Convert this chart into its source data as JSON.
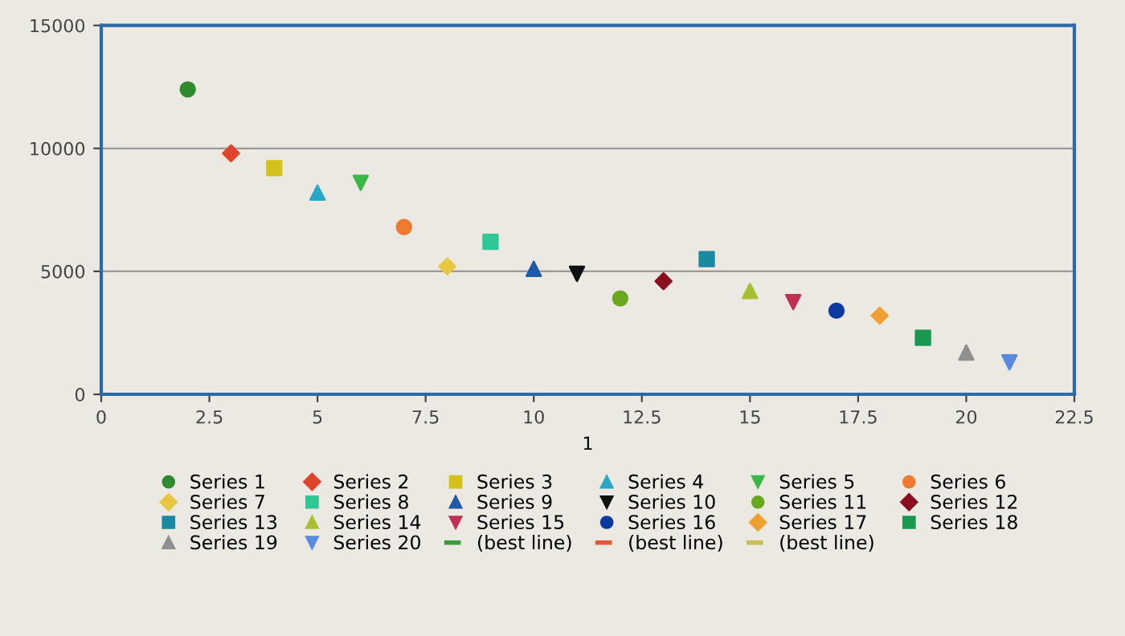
{
  "chart_data": {
    "type": "scatter",
    "xlabel": "1",
    "xlim": [
      0,
      22.5
    ],
    "xticks": [
      0,
      2.5,
      5,
      7.5,
      10,
      12.5,
      15,
      17.5,
      20,
      22.5
    ],
    "ylim": [
      0,
      15000
    ],
    "yticks": [
      0,
      5000,
      10000,
      15000
    ],
    "grid": "y",
    "legend": "bottom",
    "series": [
      {
        "name": "Series 1",
        "color": "#2e8b2e",
        "marker": "circle",
        "x": [
          2
        ],
        "values": [
          12400
        ]
      },
      {
        "name": "Series 2",
        "color": "#e0442a",
        "marker": "diamond",
        "x": [
          3
        ],
        "values": [
          9800
        ]
      },
      {
        "name": "Series 3",
        "color": "#d4c21a",
        "marker": "square",
        "x": [
          4
        ],
        "values": [
          9200
        ]
      },
      {
        "name": "Series 4",
        "color": "#2aa8c8",
        "marker": "triangle",
        "x": [
          5
        ],
        "values": [
          8200
        ]
      },
      {
        "name": "Series 5",
        "color": "#3cb84a",
        "marker": "triangle_down",
        "x": [
          6
        ],
        "values": [
          8600
        ]
      },
      {
        "name": "Series 6",
        "color": "#f07a30",
        "marker": "circle",
        "x": [
          7
        ],
        "values": [
          6800
        ]
      },
      {
        "name": "Series 7",
        "color": "#e8c840",
        "marker": "diamond",
        "x": [
          8
        ],
        "values": [
          5200
        ]
      },
      {
        "name": "Series 8",
        "color": "#2ec896",
        "marker": "square",
        "x": [
          9
        ],
        "values": [
          6200
        ]
      },
      {
        "name": "Series 9",
        "color": "#1e5aa8",
        "marker": "triangle",
        "x": [
          10
        ],
        "values": [
          5100
        ]
      },
      {
        "name": "Series 10",
        "color": "#111111",
        "marker": "triangle_down",
        "x": [
          11
        ],
        "values": [
          4900
        ]
      },
      {
        "name": "Series 11",
        "color": "#6aa820",
        "marker": "circle",
        "x": [
          12
        ],
        "values": [
          3900
        ]
      },
      {
        "name": "Series 12",
        "color": "#8a1020",
        "marker": "diamond",
        "x": [
          13
        ],
        "values": [
          4600
        ]
      },
      {
        "name": "Series 13",
        "color": "#1a8aa0",
        "marker": "square",
        "x": [
          14
        ],
        "values": [
          5500
        ]
      },
      {
        "name": "Series 14",
        "color": "#a8c030",
        "marker": "triangle",
        "x": [
          15
        ],
        "values": [
          4200
        ]
      },
      {
        "name": "Series 15",
        "color": "#c03050",
        "marker": "triangle_down",
        "x": [
          16
        ],
        "values": [
          3750
        ]
      },
      {
        "name": "Series 16",
        "color": "#0a3aa0",
        "marker": "circle",
        "x": [
          17
        ],
        "values": [
          3400
        ]
      },
      {
        "name": "Series 17",
        "color": "#f0a030",
        "marker": "diamond",
        "x": [
          18
        ],
        "values": [
          3200
        ]
      },
      {
        "name": "Series 18",
        "color": "#1a9850",
        "marker": "square",
        "x": [
          19
        ],
        "values": [
          2300
        ]
      },
      {
        "name": "Series 19",
        "color": "#909090",
        "marker": "triangle",
        "x": [
          20
        ],
        "values": [
          1700
        ]
      },
      {
        "name": "Series 20",
        "color": "#5a8ae0",
        "marker": "triangle_down",
        "x": [
          21
        ],
        "values": [
          1300
        ]
      },
      {
        "name": "(best line)",
        "type": "line",
        "color": "#3c9a3c",
        "line_style": "dashed",
        "marker": "none"
      },
      {
        "name": "(best line)",
        "type": "line",
        "color": "#e05a3a",
        "line_style": "dashed",
        "marker": "none"
      },
      {
        "name": "(best line)",
        "type": "line",
        "color": "#c8c050",
        "line_style": "dashed",
        "marker": "none"
      }
    ]
  }
}
